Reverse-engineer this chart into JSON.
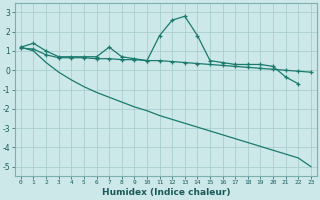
{
  "xlabel": "Humidex (Indice chaleur)",
  "bg_color": "#cde8e8",
  "grid_color": "#aacece",
  "line_color": "#1a7a6e",
  "xlim": [
    -0.5,
    23.5
  ],
  "ylim": [
    -5.5,
    3.5
  ],
  "yticks": [
    -5,
    -4,
    -3,
    -2,
    -1,
    0,
    1,
    2,
    3
  ],
  "xticks": [
    0,
    1,
    2,
    3,
    4,
    5,
    6,
    7,
    8,
    9,
    10,
    11,
    12,
    13,
    14,
    15,
    16,
    17,
    18,
    19,
    20,
    21,
    22,
    23
  ],
  "line1_x": [
    0,
    1,
    2,
    3,
    4,
    5,
    6,
    7,
    8,
    9,
    10,
    11,
    12,
    13,
    14,
    15,
    16,
    17,
    18,
    19,
    20,
    21,
    22
  ],
  "line1_y": [
    1.2,
    1.4,
    1.0,
    0.7,
    0.7,
    0.7,
    0.7,
    1.2,
    0.7,
    0.6,
    0.5,
    1.8,
    2.6,
    2.8,
    1.8,
    0.5,
    0.4,
    0.3,
    0.3,
    0.3,
    0.2,
    -0.35,
    -0.7
  ],
  "line2_x": [
    0,
    1,
    2,
    3,
    4,
    5,
    6,
    7,
    8,
    9,
    10,
    11,
    12,
    13,
    14,
    15,
    16,
    17,
    18,
    19,
    20,
    21,
    22,
    23
  ],
  "line2_y": [
    1.15,
    1.1,
    0.8,
    0.65,
    0.65,
    0.65,
    0.6,
    0.6,
    0.55,
    0.55,
    0.5,
    0.5,
    0.45,
    0.4,
    0.35,
    0.3,
    0.25,
    0.2,
    0.15,
    0.1,
    0.05,
    0.0,
    -0.05,
    -0.1
  ],
  "line3_x": [
    0,
    1,
    2,
    3,
    4,
    5,
    6,
    7,
    8,
    9,
    10,
    11,
    12,
    13,
    14,
    15,
    16,
    17,
    18,
    19,
    20,
    21,
    22,
    23
  ],
  "line3_y": [
    1.2,
    1.0,
    0.4,
    -0.1,
    -0.5,
    -0.85,
    -1.15,
    -1.4,
    -1.65,
    -1.9,
    -2.1,
    -2.35,
    -2.55,
    -2.75,
    -2.95,
    -3.15,
    -3.35,
    -3.55,
    -3.75,
    -3.95,
    -4.15,
    -4.35,
    -4.55,
    -5.0
  ]
}
